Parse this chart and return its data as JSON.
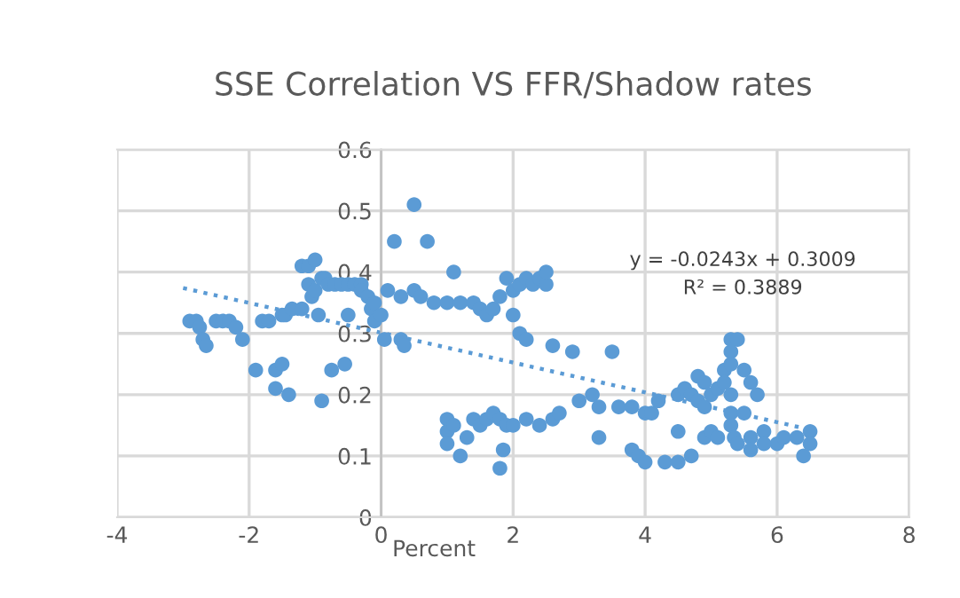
{
  "chart_data": {
    "type": "scatter",
    "title": "SSE Correlation VS FFR/Shadow rates",
    "xlabel": "Percent",
    "xlim": [
      -4,
      8
    ],
    "xticks": [
      -4,
      -2,
      0,
      2,
      4,
      6,
      8
    ],
    "ylim": [
      0,
      0.6
    ],
    "yticks": [
      0,
      0.1,
      0.2,
      0.3,
      0.4,
      0.5,
      0.6
    ],
    "grid": true,
    "annotations": [
      "y = -0.0243x + 0.3009\nR² = 0.3889"
    ],
    "series": [
      {
        "color": "#5b9bd5",
        "marker": "circle",
        "x": [
          -2.9,
          -2.8,
          -2.75,
          -2.7,
          -2.65,
          -2.5,
          -2.4,
          -2.3,
          -2.2,
          -2.1,
          -1.9,
          -1.8,
          -1.7,
          -1.6,
          -1.5,
          -1.5,
          -1.45,
          -1.35,
          -1.6,
          -1.2,
          -1.2,
          -1.4,
          -1.1,
          -1.1,
          -1.05,
          -1.0,
          -1.0,
          -0.95,
          -0.9,
          -0.85,
          -0.8,
          -0.7,
          -0.6,
          -0.5,
          -0.5,
          -0.9,
          -0.4,
          -0.3,
          -0.3,
          -0.75,
          -0.2,
          -0.15,
          -0.1,
          -0.1,
          -0.55,
          0.0,
          0.05,
          0.3,
          0.35,
          0.2,
          0.5,
          0.7,
          0.1,
          0.3,
          0.5,
          0.6,
          0.8,
          1.0,
          1.1,
          1.2,
          1.4,
          1.5,
          1.6,
          1.7,
          1.8,
          1.9,
          2.0,
          2.1,
          2.2,
          2.3,
          2.4,
          2.5,
          2.5,
          2.0,
          2.1,
          2.2,
          2.6,
          2.9,
          3.5,
          1.0,
          1.0,
          1.0,
          1.1,
          1.2,
          1.3,
          1.4,
          1.5,
          1.6,
          1.7,
          1.8,
          1.85,
          1.8,
          1.9,
          2.0,
          2.2,
          2.4,
          2.6,
          2.7,
          3.0,
          3.2,
          3.3,
          3.3,
          3.6,
          3.8,
          4.0,
          4.1,
          3.8,
          3.9,
          4.0,
          4.3,
          4.5,
          4.5,
          4.6,
          4.2,
          4.8,
          4.9,
          4.7,
          4.8,
          4.9,
          5.0,
          5.1,
          5.2,
          5.3,
          5.4,
          5.3,
          5.3,
          5.2,
          5.3,
          5.3,
          5.3,
          5.35,
          5.4,
          5.5,
          5.6,
          5.5,
          5.6,
          5.6,
          5.7,
          5.8,
          6.0,
          6.1,
          6.3,
          6.4,
          6.5,
          6.5,
          4.9,
          4.5,
          4.7,
          5.0,
          5.1,
          5.8
        ],
        "values": [
          0.32,
          0.32,
          0.31,
          0.29,
          0.28,
          0.32,
          0.32,
          0.32,
          0.31,
          0.29,
          0.24,
          0.32,
          0.32,
          0.24,
          0.33,
          0.25,
          0.33,
          0.34,
          0.21,
          0.34,
          0.41,
          0.2,
          0.41,
          0.38,
          0.36,
          0.42,
          0.37,
          0.33,
          0.39,
          0.39,
          0.38,
          0.38,
          0.38,
          0.38,
          0.33,
          0.19,
          0.38,
          0.38,
          0.37,
          0.24,
          0.36,
          0.34,
          0.32,
          0.35,
          0.25,
          0.33,
          0.29,
          0.29,
          0.28,
          0.45,
          0.51,
          0.45,
          0.37,
          0.36,
          0.37,
          0.36,
          0.35,
          0.35,
          0.4,
          0.35,
          0.35,
          0.34,
          0.33,
          0.34,
          0.36,
          0.39,
          0.37,
          0.38,
          0.39,
          0.38,
          0.39,
          0.38,
          0.4,
          0.33,
          0.3,
          0.29,
          0.28,
          0.27,
          0.27,
          0.16,
          0.14,
          0.12,
          0.15,
          0.1,
          0.13,
          0.16,
          0.15,
          0.16,
          0.17,
          0.16,
          0.11,
          0.08,
          0.15,
          0.15,
          0.16,
          0.15,
          0.16,
          0.17,
          0.19,
          0.2,
          0.18,
          0.13,
          0.18,
          0.18,
          0.17,
          0.17,
          0.11,
          0.1,
          0.09,
          0.09,
          0.09,
          0.2,
          0.21,
          0.19,
          0.23,
          0.22,
          0.2,
          0.19,
          0.18,
          0.2,
          0.21,
          0.24,
          0.29,
          0.29,
          0.27,
          0.25,
          0.22,
          0.2,
          0.17,
          0.15,
          0.13,
          0.12,
          0.24,
          0.22,
          0.17,
          0.13,
          0.11,
          0.2,
          0.14,
          0.12,
          0.13,
          0.13,
          0.1,
          0.14,
          0.12,
          0.13,
          0.14,
          0.1,
          0.14,
          0.13,
          0.12
        ]
      },
      {
        "type": "line",
        "color": "#5b9bd5",
        "line_style": "dotted",
        "x": [
          -3,
          6.5
        ],
        "values": [
          0.374,
          0.143
        ]
      }
    ]
  }
}
